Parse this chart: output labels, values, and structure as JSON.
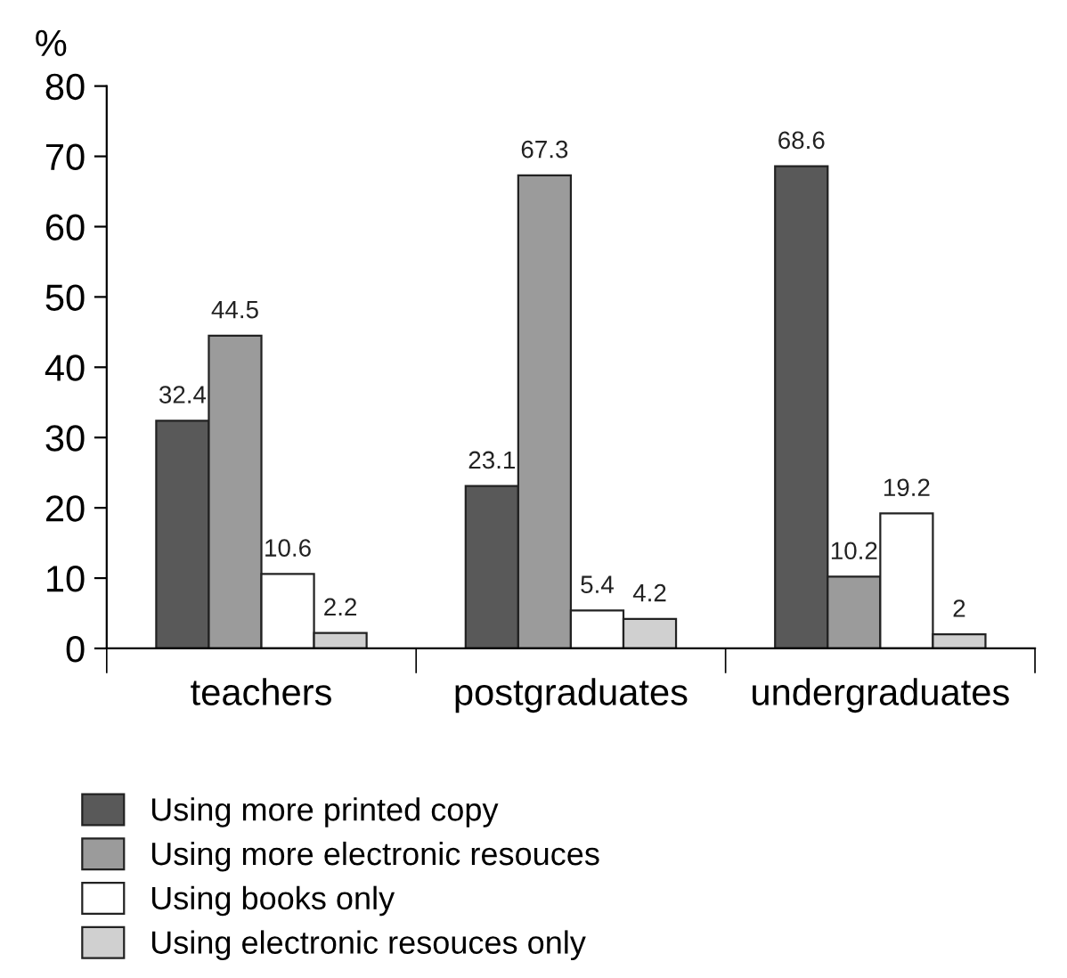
{
  "chart_data": {
    "type": "bar",
    "ylabel": "%",
    "categories": [
      "teachers",
      "postgraduates",
      "undergraduates"
    ],
    "series": [
      {
        "name": "Using more printed copy",
        "color": "#595959",
        "values": [
          32.4,
          23.1,
          68.6
        ]
      },
      {
        "name": "Using more electronic resouces",
        "color": "#9b9b9b",
        "values": [
          44.5,
          67.3,
          10.2
        ]
      },
      {
        "name": "Using books only",
        "color": "#ffffff",
        "values": [
          10.6,
          5.4,
          19.2
        ]
      },
      {
        "name": "Using electronic resouces only",
        "color": "#d0d0d0",
        "values": [
          2.2,
          4.2,
          2
        ]
      }
    ],
    "ylim": [
      0,
      80
    ],
    "yticks": [
      0,
      10,
      20,
      30,
      40,
      50,
      60,
      70,
      80
    ],
    "grid": false,
    "legend": "bottom",
    "data_labels": true
  }
}
